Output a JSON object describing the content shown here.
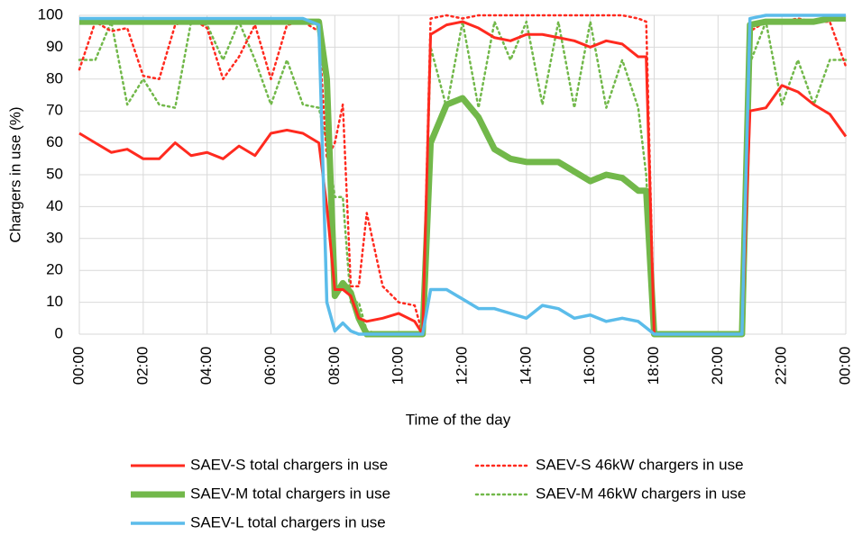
{
  "chart_data": {
    "type": "line",
    "x_label": "Time of the day",
    "y_label": "Chargers in use (%)",
    "xlim": [
      0,
      24
    ],
    "xticks": [
      {
        "value": 0,
        "label": "00:00"
      },
      {
        "value": 2,
        "label": "02:00"
      },
      {
        "value": 4,
        "label": "04:00"
      },
      {
        "value": 6,
        "label": "06:00"
      },
      {
        "value": 8,
        "label": "08:00"
      },
      {
        "value": 10,
        "label": "10:00"
      },
      {
        "value": 12,
        "label": "12:00"
      },
      {
        "value": 14,
        "label": "14:00"
      },
      {
        "value": 16,
        "label": "16:00"
      },
      {
        "value": 18,
        "label": "18:00"
      },
      {
        "value": 20,
        "label": "20:00"
      },
      {
        "value": 22,
        "label": "22:00"
      },
      {
        "value": 24,
        "label": "00:00"
      }
    ],
    "ylim": [
      0,
      100
    ],
    "yticks": [
      0,
      10,
      20,
      30,
      40,
      50,
      60,
      70,
      80,
      90,
      100
    ],
    "grid": true,
    "legend": "bottom",
    "x": [
      0,
      0.5,
      1,
      1.5,
      2,
      2.5,
      3,
      3.5,
      4,
      4.5,
      5,
      5.5,
      6,
      6.5,
      7,
      7.5,
      7.75,
      8,
      8.25,
      8.5,
      8.75,
      9,
      9.5,
      10,
      10.5,
      10.75,
      11,
      11.5,
      12,
      12.5,
      13,
      13.5,
      14,
      14.5,
      15,
      15.5,
      16,
      16.5,
      17,
      17.5,
      17.75,
      18,
      18.5,
      19,
      19.5,
      20,
      20.5,
      20.75,
      21,
      21.5,
      22,
      22.5,
      23,
      23.5,
      24
    ],
    "series": [
      {
        "name": "SAEV-S total chargers in use",
        "color": "#ff2a1f",
        "linestyle": "solid",
        "values": [
          63,
          60,
          57,
          58,
          55,
          55,
          60,
          56,
          57,
          55,
          59,
          56,
          63,
          64,
          63,
          60,
          40,
          14,
          14,
          12,
          5,
          4,
          5,
          6.5,
          4,
          0,
          94,
          97,
          98,
          96,
          93,
          92,
          94,
          94,
          93,
          92,
          90,
          92,
          91,
          87,
          87,
          0,
          0,
          0,
          0,
          0,
          0,
          0,
          70,
          71,
          78,
          76,
          72,
          69,
          62
        ]
      },
      {
        "name": "SAEV-S 46kW chargers in use",
        "color": "#ff2a1f",
        "linestyle": "dotted",
        "values": [
          83,
          98,
          95,
          96,
          81,
          80,
          97,
          99,
          96,
          80,
          87,
          97,
          80,
          97,
          98,
          95,
          55,
          60,
          72,
          15,
          15,
          38,
          15,
          10,
          9,
          0,
          99,
          100,
          99,
          100,
          100,
          100,
          100,
          100,
          100,
          100,
          100,
          100,
          100,
          99,
          98,
          0,
          0,
          0,
          0,
          0,
          0,
          0,
          95,
          98,
          98,
          99,
          98,
          98,
          84
        ]
      },
      {
        "name": "SAEV-M total chargers in use",
        "color": "#72b84a",
        "linestyle": "solid",
        "values": [
          98,
          98,
          98,
          98,
          98,
          98,
          98,
          98,
          98,
          98,
          98,
          98,
          98,
          98,
          98,
          98,
          80,
          12,
          16,
          13,
          5,
          0,
          0,
          0,
          0,
          0,
          60,
          72,
          74,
          68,
          58,
          55,
          54,
          54,
          54,
          51,
          48,
          50,
          49,
          45,
          45,
          0,
          0,
          0,
          0,
          0,
          0,
          0,
          97,
          98,
          98,
          98,
          98,
          99,
          99
        ]
      },
      {
        "name": "SAEV-M 46kW chargers in use",
        "color": "#72b84a",
        "linestyle": "dotted",
        "values": [
          86,
          86,
          98,
          72,
          80,
          72,
          71,
          98,
          97,
          86,
          98,
          86,
          72,
          86,
          72,
          71,
          60,
          43,
          43,
          10,
          10,
          1,
          0,
          0,
          0,
          0,
          90,
          71,
          98,
          71,
          98,
          86,
          98,
          72,
          98,
          71,
          98,
          71,
          86,
          71,
          50,
          0,
          0,
          0,
          0,
          0,
          0,
          0,
          85,
          98,
          72,
          86,
          72,
          86,
          86
        ]
      },
      {
        "name": "SAEV-L total chargers in use",
        "color": "#5bbcea",
        "linestyle": "solid",
        "values": [
          99,
          99,
          99,
          99,
          99,
          99,
          99,
          99,
          99,
          99,
          99,
          99,
          99,
          99,
          99,
          97,
          10,
          1,
          3.5,
          1,
          0,
          0,
          0,
          0,
          0,
          0,
          14,
          14,
          11,
          8,
          8,
          6.5,
          5,
          9,
          8,
          5,
          6,
          4,
          5,
          4,
          2,
          0,
          0,
          0,
          0,
          0,
          0,
          0,
          99,
          100,
          100,
          100,
          100,
          100,
          100
        ]
      }
    ]
  }
}
